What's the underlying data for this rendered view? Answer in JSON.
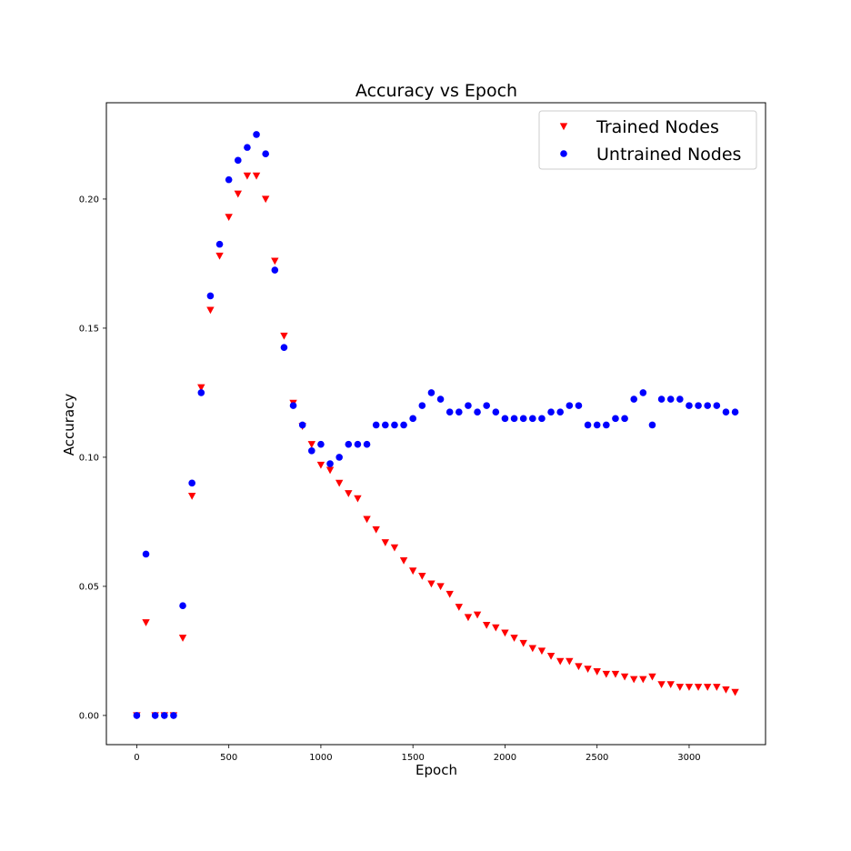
{
  "chart_data": {
    "type": "scatter",
    "title": "Accuracy vs Epoch",
    "xlabel": "Epoch",
    "ylabel": "Accuracy",
    "xlim": [
      -165,
      3415
    ],
    "ylim": [
      -0.0113,
      0.2373
    ],
    "xticks": [
      0,
      500,
      1000,
      1500,
      2000,
      2500,
      3000
    ],
    "xtick_labels": [
      "0",
      "500",
      "1000",
      "1500",
      "2000",
      "2500",
      "3000"
    ],
    "yticks": [
      0.0,
      0.05,
      0.1,
      0.15,
      0.2
    ],
    "ytick_labels": [
      "0.00",
      "0.05",
      "0.10",
      "0.15",
      "0.20"
    ],
    "grid": false,
    "legend_position": "upper right",
    "x": [
      0,
      50,
      100,
      150,
      200,
      250,
      300,
      350,
      400,
      450,
      500,
      550,
      600,
      650,
      700,
      750,
      800,
      850,
      900,
      950,
      1000,
      1050,
      1100,
      1150,
      1200,
      1250,
      1300,
      1350,
      1400,
      1450,
      1500,
      1550,
      1600,
      1650,
      1700,
      1750,
      1800,
      1850,
      1900,
      1950,
      2000,
      2050,
      2100,
      2150,
      2200,
      2250,
      2300,
      2350,
      2400,
      2450,
      2500,
      2550,
      2600,
      2650,
      2700,
      2750,
      2800,
      2850,
      2900,
      2950,
      3000,
      3050,
      3100,
      3150,
      3200,
      3250
    ],
    "series": [
      {
        "name": "Trained Nodes",
        "marker": "triangle-down",
        "color": "#ff0000",
        "values": [
          0.0,
          0.036,
          0.0,
          0.0,
          0.0,
          0.03,
          0.085,
          0.127,
          0.157,
          0.178,
          0.193,
          0.202,
          0.209,
          0.209,
          0.2,
          0.176,
          0.147,
          0.121,
          0.112,
          0.105,
          0.097,
          0.095,
          0.09,
          0.086,
          0.084,
          0.076,
          0.072,
          0.067,
          0.065,
          0.06,
          0.056,
          0.054,
          0.051,
          0.05,
          0.047,
          0.042,
          0.038,
          0.039,
          0.035,
          0.034,
          0.032,
          0.03,
          0.028,
          0.026,
          0.025,
          0.023,
          0.021,
          0.021,
          0.019,
          0.018,
          0.017,
          0.016,
          0.016,
          0.015,
          0.014,
          0.014,
          0.015,
          0.012,
          0.012,
          0.011,
          0.011,
          0.011,
          0.011,
          0.011,
          0.01,
          0.009
        ]
      },
      {
        "name": "Untrained Nodes",
        "marker": "circle",
        "color": "#0000ff",
        "values": [
          0.0,
          0.0625,
          0.0,
          0.0,
          0.0,
          0.0425,
          0.09,
          0.125,
          0.1625,
          0.1825,
          0.2075,
          0.215,
          0.22,
          0.225,
          0.2175,
          0.1725,
          0.1425,
          0.12,
          0.1125,
          0.1025,
          0.105,
          0.0975,
          0.1,
          0.105,
          0.105,
          0.105,
          0.1125,
          0.1125,
          0.1125,
          0.1125,
          0.115,
          0.12,
          0.125,
          0.1225,
          0.1175,
          0.1175,
          0.12,
          0.1175,
          0.12,
          0.1175,
          0.115,
          0.115,
          0.115,
          0.115,
          0.115,
          0.1175,
          0.1175,
          0.12,
          0.12,
          0.1125,
          0.1125,
          0.1125,
          0.115,
          0.115,
          0.1225,
          0.125,
          0.1125,
          0.1225,
          0.1225,
          0.1225,
          0.12,
          0.12,
          0.12,
          0.12,
          0.1175,
          0.1175
        ]
      }
    ]
  }
}
